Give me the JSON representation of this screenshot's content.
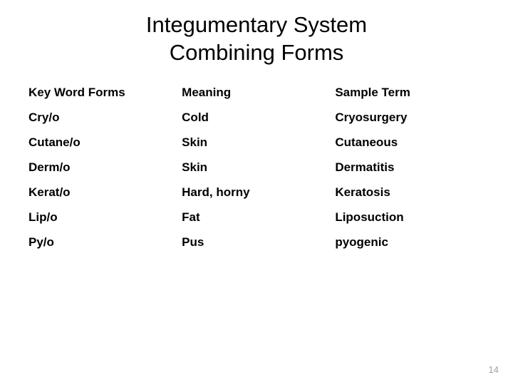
{
  "title_line1": "Integumentary System",
  "title_line2": "Combining Forms",
  "columns": [
    {
      "label": "Key Word Forms",
      "width": "33%"
    },
    {
      "label": "Meaning",
      "width": "33%"
    },
    {
      "label": "Sample Term",
      "width": "34%"
    }
  ],
  "rows": [
    [
      "Cry/o",
      "Cold",
      "Cryosurgery"
    ],
    [
      "Cutane/o",
      "Skin",
      "Cutaneous"
    ],
    [
      "Derm/o",
      "Skin",
      "Dermatitis"
    ],
    [
      "Kerat/o",
      "Hard, horny",
      "Keratosis"
    ],
    [
      "Lip/o",
      "Fat",
      "Liposuction"
    ],
    [
      "Py/o",
      "Pus",
      "pyogenic"
    ]
  ],
  "page_number": "14",
  "style": {
    "background_color": "#ffffff",
    "title_fontsize": 31,
    "title_color": "#000000",
    "header_fontsize": 17,
    "cell_fontsize": 17,
    "text_color": "#000000",
    "page_number_color": "#b0a090",
    "page_number_fontsize": 13,
    "font_family_title": "Verdana",
    "font_family_table": "Arial",
    "font_weight_table": "bold"
  }
}
